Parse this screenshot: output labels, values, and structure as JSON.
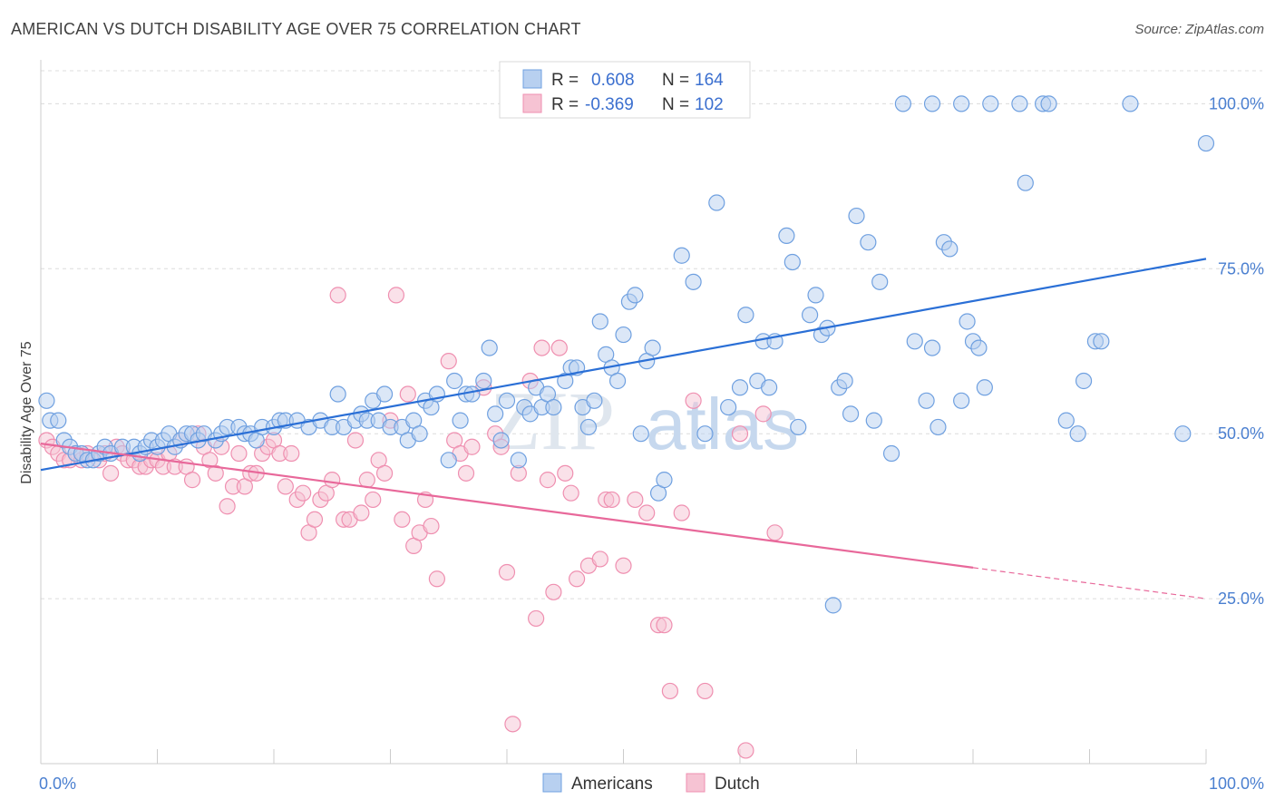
{
  "header": {
    "title": "AMERICAN VS DUTCH DISABILITY AGE OVER 75 CORRELATION CHART",
    "source": "Source: ZipAtlas.com"
  },
  "colors": {
    "americans": "#6fa0e0",
    "americans_fill": "#b8d0f0",
    "americans_line": "#2a6fd6",
    "dutch": "#ef8fb0",
    "dutch_fill": "#f6c3d3",
    "dutch_line": "#e8689a",
    "axis_text": "#4a7fd0"
  },
  "chart_data": {
    "type": "scatter",
    "title": "AMERICAN VS DUTCH DISABILITY AGE OVER 75 CORRELATION CHART",
    "xlabel": "",
    "ylabel": "Disability Age Over 75",
    "xlim": [
      0,
      100
    ],
    "ylim": [
      0,
      105
    ],
    "x_tick_labels": [
      "0.0%",
      "100.0%"
    ],
    "y_ticks": [
      25,
      50,
      75,
      100
    ],
    "y_tick_labels": [
      "25.0%",
      "50.0%",
      "75.0%",
      "100.0%"
    ],
    "grid": true,
    "legend": {
      "placement": "top-center",
      "rows": [
        {
          "r_label": "R =",
          "r_value": "0.608",
          "n_label": "N =",
          "n_value": "164"
        },
        {
          "r_label": "R =",
          "r_value": "-0.369",
          "n_label": "N =",
          "n_value": "102"
        }
      ]
    },
    "series": [
      {
        "name": "Americans",
        "trend": {
          "x": [
            0,
            100
          ],
          "y": [
            44.5,
            76.5
          ]
        },
        "points": [
          [
            0.5,
            55
          ],
          [
            0.8,
            52
          ],
          [
            1.5,
            52
          ],
          [
            2,
            49
          ],
          [
            2.5,
            48
          ],
          [
            3,
            47
          ],
          [
            3.5,
            47
          ],
          [
            4,
            46
          ],
          [
            4.5,
            46
          ],
          [
            5,
            47
          ],
          [
            5.5,
            48
          ],
          [
            6,
            47
          ],
          [
            7,
            48
          ],
          [
            8,
            48
          ],
          [
            8.5,
            47
          ],
          [
            9,
            48
          ],
          [
            9.5,
            49
          ],
          [
            10,
            48
          ],
          [
            10.5,
            49
          ],
          [
            11,
            50
          ],
          [
            11.5,
            48
          ],
          [
            12,
            49
          ],
          [
            12.5,
            50
          ],
          [
            13,
            50
          ],
          [
            13.5,
            49
          ],
          [
            14,
            50
          ],
          [
            15,
            49
          ],
          [
            15.5,
            50
          ],
          [
            16,
            51
          ],
          [
            17,
            51
          ],
          [
            17.5,
            50
          ],
          [
            18,
            50
          ],
          [
            18.5,
            49
          ],
          [
            19,
            51
          ],
          [
            20,
            51
          ],
          [
            20.5,
            52
          ],
          [
            21,
            52
          ],
          [
            22,
            52
          ],
          [
            23,
            51
          ],
          [
            24,
            52
          ],
          [
            25,
            51
          ],
          [
            25.5,
            56
          ],
          [
            26,
            51
          ],
          [
            27,
            52
          ],
          [
            27.5,
            53
          ],
          [
            28,
            52
          ],
          [
            28.5,
            55
          ],
          [
            29,
            52
          ],
          [
            29.5,
            56
          ],
          [
            30,
            51
          ],
          [
            31,
            51
          ],
          [
            31.5,
            49
          ],
          [
            32,
            52
          ],
          [
            32.5,
            50
          ],
          [
            33,
            55
          ],
          [
            33.5,
            54
          ],
          [
            34,
            56
          ],
          [
            35,
            46
          ],
          [
            35.5,
            58
          ],
          [
            36,
            52
          ],
          [
            36.5,
            56
          ],
          [
            37,
            56
          ],
          [
            38,
            58
          ],
          [
            38.5,
            63
          ],
          [
            39,
            53
          ],
          [
            39.5,
            49
          ],
          [
            40,
            55
          ],
          [
            41,
            46
          ],
          [
            41.5,
            54
          ],
          [
            42,
            53
          ],
          [
            42.5,
            57
          ],
          [
            43,
            54
          ],
          [
            43.5,
            56
          ],
          [
            44,
            54
          ],
          [
            45,
            58
          ],
          [
            45.5,
            60
          ],
          [
            46,
            60
          ],
          [
            46.5,
            54
          ],
          [
            47,
            51
          ],
          [
            47.5,
            55
          ],
          [
            48,
            67
          ],
          [
            48.5,
            62
          ],
          [
            49,
            60
          ],
          [
            49.5,
            58
          ],
          [
            50,
            65
          ],
          [
            50.5,
            70
          ],
          [
            51,
            71
          ],
          [
            51.5,
            50
          ],
          [
            52,
            61
          ],
          [
            52.5,
            63
          ],
          [
            53,
            41
          ],
          [
            53.5,
            43
          ],
          [
            55,
            77
          ],
          [
            56,
            73
          ],
          [
            57,
            50
          ],
          [
            58,
            85
          ],
          [
            59,
            54
          ],
          [
            60,
            57
          ],
          [
            60.5,
            68
          ],
          [
            61.5,
            58
          ],
          [
            62,
            64
          ],
          [
            62.5,
            57
          ],
          [
            63,
            64
          ],
          [
            64,
            80
          ],
          [
            64.5,
            76
          ],
          [
            65,
            51
          ],
          [
            66,
            68
          ],
          [
            66.5,
            71
          ],
          [
            67,
            65
          ],
          [
            67.5,
            66
          ],
          [
            68,
            24
          ],
          [
            68.5,
            57
          ],
          [
            69,
            58
          ],
          [
            69.5,
            53
          ],
          [
            70,
            83
          ],
          [
            71,
            79
          ],
          [
            71.5,
            52
          ],
          [
            72,
            73
          ],
          [
            73,
            47
          ],
          [
            75,
            64
          ],
          [
            76,
            55
          ],
          [
            76.5,
            63
          ],
          [
            77,
            51
          ],
          [
            77.5,
            79
          ],
          [
            78,
            78
          ],
          [
            79,
            55
          ],
          [
            79.5,
            67
          ],
          [
            80,
            64
          ],
          [
            80.5,
            63
          ],
          [
            81,
            57
          ],
          [
            81.5,
            100
          ],
          [
            84,
            100
          ],
          [
            84.5,
            88
          ],
          [
            86,
            100
          ],
          [
            86.5,
            100
          ],
          [
            88,
            52
          ],
          [
            89,
            50
          ],
          [
            89.5,
            58
          ],
          [
            90.5,
            64
          ],
          [
            91,
            64
          ],
          [
            93.5,
            100
          ],
          [
            98,
            50
          ],
          [
            100,
            94
          ],
          [
            74,
            100
          ],
          [
            76.5,
            100
          ],
          [
            79,
            100
          ]
        ]
      },
      {
        "name": "Dutch",
        "trend": {
          "x": [
            0,
            100
          ],
          "y": [
            48.5,
            25.0
          ]
        },
        "trend_solid_until_x": 80,
        "points": [
          [
            0.5,
            49
          ],
          [
            1,
            48
          ],
          [
            1.5,
            47
          ],
          [
            2,
            46
          ],
          [
            2.5,
            46
          ],
          [
            3,
            47
          ],
          [
            3.5,
            46
          ],
          [
            4,
            47
          ],
          [
            5,
            46
          ],
          [
            5.5,
            47
          ],
          [
            6,
            44
          ],
          [
            6.5,
            48
          ],
          [
            7,
            47
          ],
          [
            7.5,
            46
          ],
          [
            8,
            46
          ],
          [
            8.5,
            45
          ],
          [
            9,
            45
          ],
          [
            9.5,
            46
          ],
          [
            10,
            46
          ],
          [
            10.5,
            45
          ],
          [
            11,
            47
          ],
          [
            11.5,
            45
          ],
          [
            12,
            49
          ],
          [
            12.5,
            45
          ],
          [
            13,
            43
          ],
          [
            13.5,
            50
          ],
          [
            14,
            48
          ],
          [
            14.5,
            46
          ],
          [
            15,
            44
          ],
          [
            15.5,
            48
          ],
          [
            16,
            39
          ],
          [
            16.5,
            42
          ],
          [
            17,
            47
          ],
          [
            17.5,
            42
          ],
          [
            18,
            44
          ],
          [
            18.5,
            44
          ],
          [
            19,
            47
          ],
          [
            19.5,
            48
          ],
          [
            20,
            49
          ],
          [
            20.5,
            47
          ],
          [
            21,
            42
          ],
          [
            21.5,
            47
          ],
          [
            22,
            40
          ],
          [
            22.5,
            41
          ],
          [
            23,
            35
          ],
          [
            23.5,
            37
          ],
          [
            24,
            40
          ],
          [
            24.5,
            41
          ],
          [
            25,
            43
          ],
          [
            25.5,
            71
          ],
          [
            26,
            37
          ],
          [
            26.5,
            37
          ],
          [
            27,
            49
          ],
          [
            27.5,
            38
          ],
          [
            28,
            43
          ],
          [
            28.5,
            40
          ],
          [
            29,
            46
          ],
          [
            29.5,
            44
          ],
          [
            30,
            52
          ],
          [
            30.5,
            71
          ],
          [
            31,
            37
          ],
          [
            31.5,
            56
          ],
          [
            32,
            33
          ],
          [
            32.5,
            35
          ],
          [
            33,
            40
          ],
          [
            33.5,
            36
          ],
          [
            34,
            28
          ],
          [
            35,
            61
          ],
          [
            35.5,
            49
          ],
          [
            36,
            47
          ],
          [
            36.5,
            44
          ],
          [
            37,
            48
          ],
          [
            38,
            57
          ],
          [
            39,
            50
          ],
          [
            39.5,
            48
          ],
          [
            40,
            29
          ],
          [
            40.5,
            6
          ],
          [
            41,
            44
          ],
          [
            42,
            58
          ],
          [
            42.5,
            22
          ],
          [
            43,
            63
          ],
          [
            43.5,
            43
          ],
          [
            44,
            26
          ],
          [
            44.5,
            63
          ],
          [
            45,
            44
          ],
          [
            45.5,
            41
          ],
          [
            46,
            28
          ],
          [
            47,
            30
          ],
          [
            48,
            31
          ],
          [
            48.5,
            40
          ],
          [
            49,
            40
          ],
          [
            50,
            30
          ],
          [
            51,
            40
          ],
          [
            52,
            38
          ],
          [
            53,
            21
          ],
          [
            53.5,
            21
          ],
          [
            54,
            11
          ],
          [
            55,
            38
          ],
          [
            56,
            55
          ],
          [
            57,
            11
          ],
          [
            60.5,
            2
          ],
          [
            60,
            50
          ],
          [
            62,
            53
          ],
          [
            63,
            35
          ]
        ]
      }
    ]
  },
  "legend_bottom": {
    "americans_label": "Americans",
    "dutch_label": "Dutch"
  },
  "watermark": "ZIPatlas"
}
